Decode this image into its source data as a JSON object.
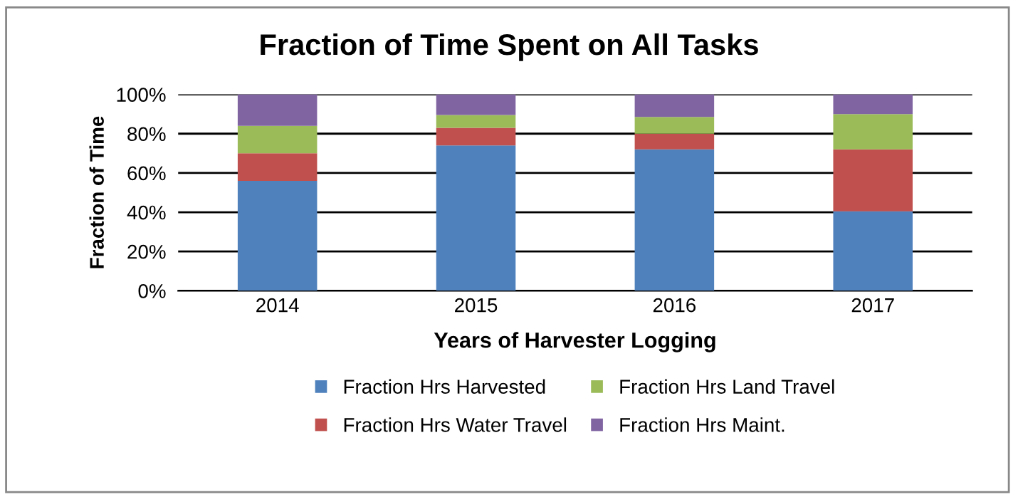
{
  "chart_data": {
    "type": "bar",
    "stacked": true,
    "title": "Fraction of Time Spent on All Tasks",
    "xlabel": "Years of Harvester Logging",
    "ylabel": "Fraction of Time",
    "categories": [
      "2014",
      "2015",
      "2016",
      "2017"
    ],
    "series": [
      {
        "name": "Fraction Hrs Harvested",
        "color": "#4f81bd",
        "values": [
          56,
          74,
          72,
          40.5
        ]
      },
      {
        "name": "Fraction Hrs Water Travel",
        "color": "#c0504d",
        "values": [
          14,
          9,
          8,
          31.5
        ]
      },
      {
        "name": "Fraction Hrs Land Travel",
        "color": "#9bbb59",
        "values": [
          14,
          6.5,
          8.5,
          18
        ]
      },
      {
        "name": "Fraction Hrs Maint.",
        "color": "#8064a2",
        "values": [
          16,
          10.5,
          11.5,
          10
        ]
      }
    ],
    "ylim": [
      0,
      100
    ],
    "yticks": [
      {
        "value": 0,
        "label": "0%"
      },
      {
        "value": 20,
        "label": "20%"
      },
      {
        "value": 40,
        "label": "40%"
      },
      {
        "value": 60,
        "label": "60%"
      },
      {
        "value": 80,
        "label": "80%"
      },
      {
        "value": 100,
        "label": "100%"
      }
    ],
    "grid": "y",
    "legend": "bottom"
  }
}
